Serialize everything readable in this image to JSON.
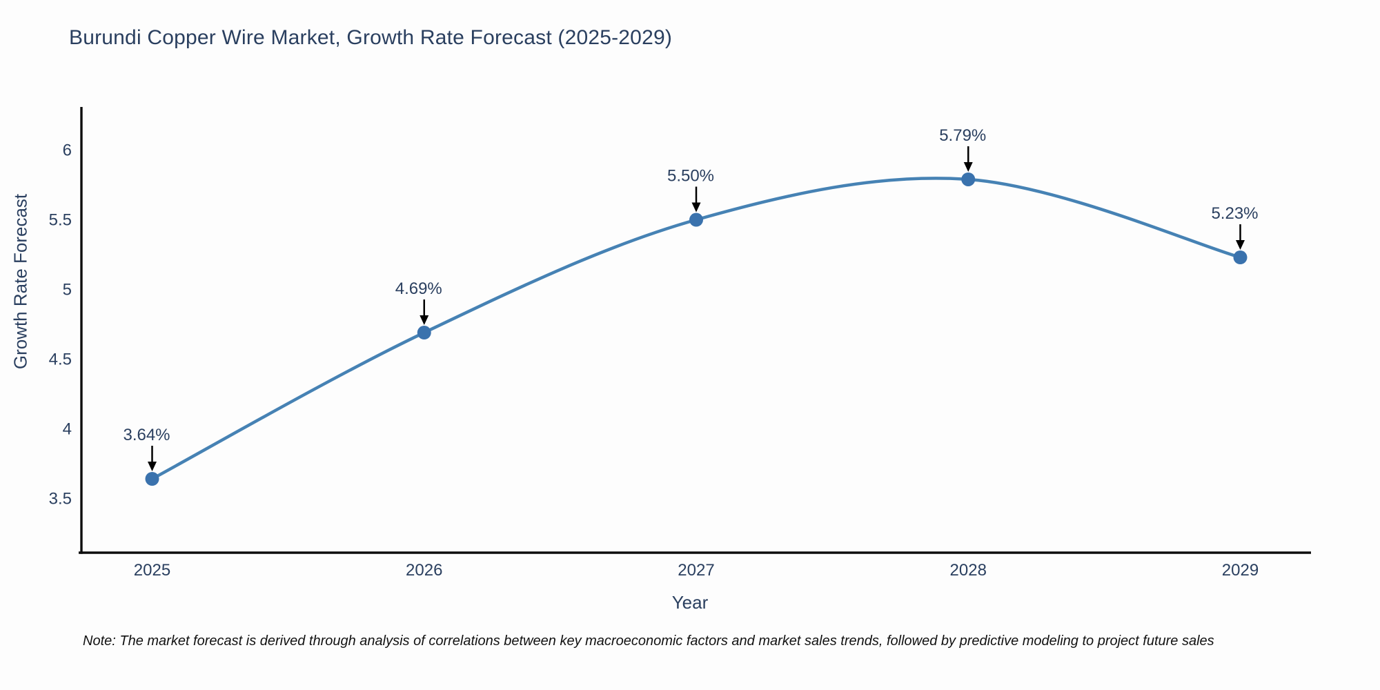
{
  "title": "Burundi Copper Wire Market, Growth Rate Forecast (2025-2029)",
  "note": "Note: The market forecast is derived through analysis of correlations between key macroeconomic factors and market sales trends, followed by predictive modeling to project future sales",
  "chart_data": {
    "type": "line",
    "title": "Burundi Copper Wire Market, Growth Rate Forecast (2025-2029)",
    "xlabel": "Year",
    "ylabel": "Growth Rate Forecast",
    "x": [
      2025,
      2026,
      2027,
      2028,
      2029
    ],
    "series": [
      {
        "name": "Growth Rate Forecast",
        "values": [
          3.64,
          4.69,
          5.5,
          5.79,
          5.23
        ]
      }
    ],
    "point_labels": [
      "3.64%",
      "4.69%",
      "5.50%",
      "5.79%",
      "5.23%"
    ],
    "yticks": [
      3.5,
      4,
      4.5,
      5,
      5.5,
      6
    ],
    "ylim": [
      3.11,
      6.31
    ],
    "xlim": [
      2024.74,
      2029.26
    ],
    "grid": false,
    "legend": "none",
    "line_shape": "spline",
    "colors": {
      "line": "#4682b4",
      "marker": "#3a72ad",
      "axis": "#0d0d0d",
      "arrow": "#000000",
      "text": "#2a3f5f",
      "note_text": "#111111",
      "background": "#fdfdfd"
    }
  }
}
